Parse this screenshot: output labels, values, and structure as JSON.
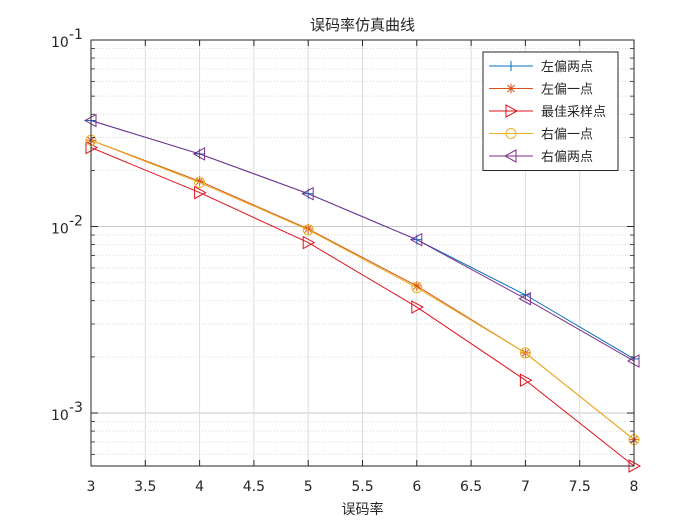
{
  "chart_data": {
    "type": "line",
    "title": "误码率仿真曲线",
    "xlabel": "误码率",
    "ylabel": "",
    "xlim": [
      3,
      8
    ],
    "ylim": [
      0.00052,
      0.1
    ],
    "yscale": "log",
    "grid": true,
    "legend_position": "top-right",
    "x_ticks": [
      "3",
      "3.5",
      "4",
      "4.5",
      "5",
      "5.5",
      "6",
      "6.5",
      "7",
      "7.5",
      "8"
    ],
    "y_ticks": [
      {
        "base": "10",
        "exp": "-1",
        "value": 0.1
      },
      {
        "base": "10",
        "exp": "-2",
        "value": 0.01
      },
      {
        "base": "10",
        "exp": "-3",
        "value": 0.001
      }
    ],
    "x": [
      3,
      4,
      5,
      6,
      7,
      8
    ],
    "series": [
      {
        "name": "左偏两点",
        "color": "#0072BD",
        "marker": "plus",
        "values": [
          0.037,
          0.0245,
          0.015,
          0.0085,
          0.0043,
          0.00195
        ]
      },
      {
        "name": "左偏一点",
        "color": "#D95319",
        "marker": "asterisk",
        "values": [
          0.029,
          0.0175,
          0.0097,
          0.0048,
          0.0021,
          0.00072
        ]
      },
      {
        "name": "最佳采样点",
        "color": "#E0101E",
        "marker": "triangle-right",
        "values": [
          0.0265,
          0.0152,
          0.0082,
          0.0037,
          0.0015,
          0.00052
        ]
      },
      {
        "name": "右偏一点",
        "color": "#EDB120",
        "marker": "circle",
        "values": [
          0.029,
          0.0172,
          0.0096,
          0.0047,
          0.0021,
          0.00072
        ]
      },
      {
        "name": "右偏两点",
        "color": "#7E2F8E",
        "marker": "triangle-left",
        "values": [
          0.037,
          0.0245,
          0.015,
          0.0085,
          0.0041,
          0.0019
        ]
      }
    ]
  }
}
